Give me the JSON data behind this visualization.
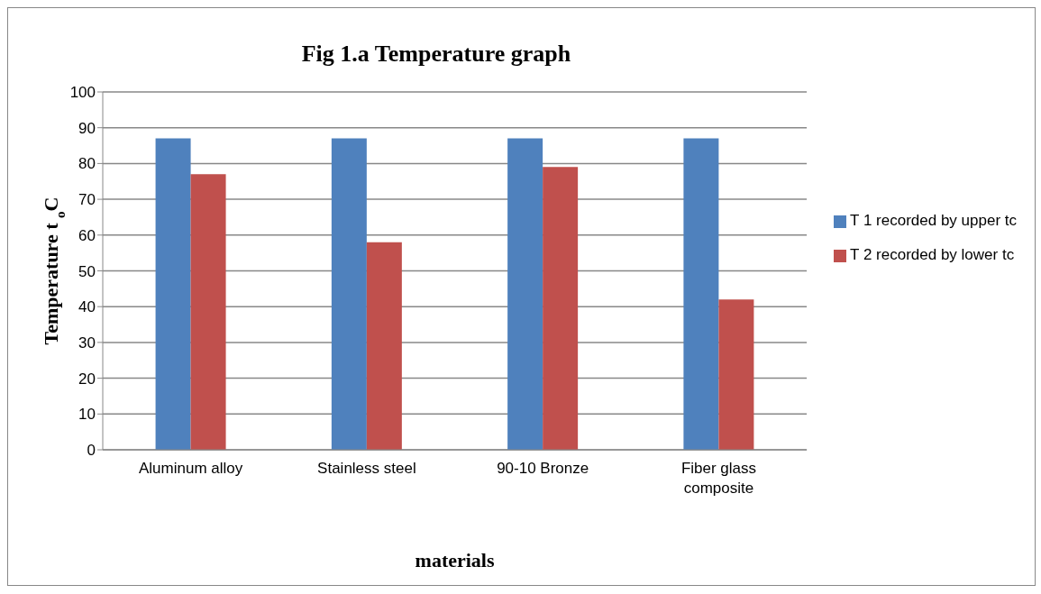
{
  "chart_data": {
    "type": "bar",
    "title": "Fig 1.a Temperature graph",
    "xlabel": "materials",
    "ylabel": "Temperature t $_{o}$C",
    "categories": [
      "Aluminum alloy",
      "Stainless steel",
      "90-10 Bronze",
      "Fiber glass composite"
    ],
    "series": [
      {
        "name": "T 1 recorded by upper tc",
        "color": "#4f81bd",
        "values": [
          87,
          87,
          87,
          87
        ]
      },
      {
        "name": "T 2 recorded by lower tc",
        "color": "#c0504d",
        "values": [
          77,
          58,
          79,
          42
        ]
      }
    ],
    "ylim": [
      0,
      100
    ],
    "yticks": [
      0,
      10,
      20,
      30,
      40,
      50,
      60,
      70,
      80,
      90,
      100
    ],
    "grid": "y",
    "legend": "right"
  }
}
